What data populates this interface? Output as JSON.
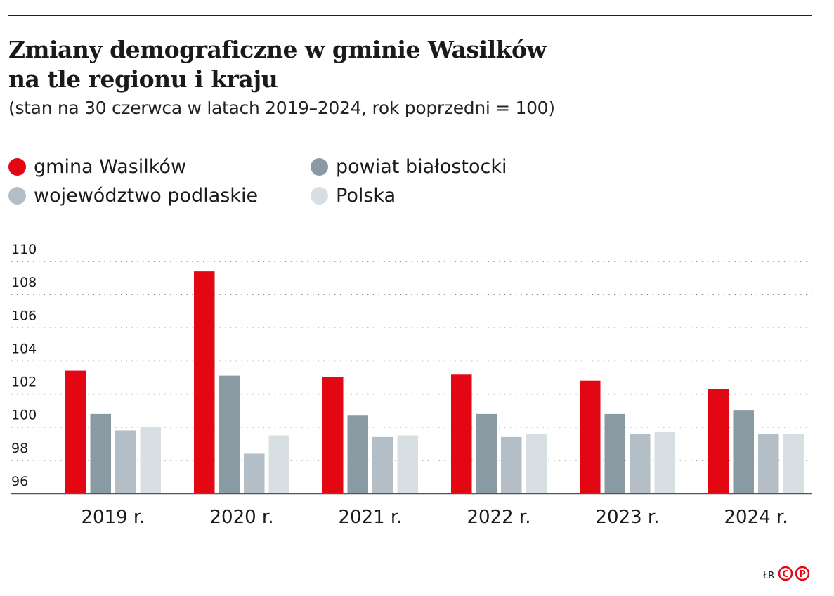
{
  "title_line1": "Zmiany demograficzne w gminie Wasilków",
  "title_line2": "na tle regionu i kraju",
  "subtitle": "(stan na 30 czerwca w latach 2019–2024, rok poprzedni = 100)",
  "credit": "ŁR",
  "logo": "CP",
  "colors": {
    "accent": "#e30613"
  },
  "chart_data": {
    "type": "bar",
    "categories": [
      "2019 r.",
      "2020 r.",
      "2021 r.",
      "2022 r.",
      "2023 r.",
      "2024 r."
    ],
    "series": [
      {
        "name": "gmina Wasilków",
        "color": "#e30613",
        "values": [
          103.4,
          109.4,
          103.0,
          103.2,
          102.8,
          102.3
        ]
      },
      {
        "name": "powiat białostocki",
        "color": "#8a9aa2",
        "values": [
          100.8,
          103.1,
          100.7,
          100.8,
          100.8,
          101.0
        ]
      },
      {
        "name": "województwo podlaskie",
        "color": "#b3bec6",
        "values": [
          99.8,
          98.4,
          99.4,
          99.4,
          99.6,
          99.6
        ]
      },
      {
        "name": "Polska",
        "color": "#d7dfe2",
        "values": [
          100.0,
          99.5,
          99.5,
          99.6,
          99.7,
          99.6
        ]
      }
    ],
    "yticks": [
      96,
      98,
      100,
      102,
      104,
      106,
      108,
      110
    ],
    "ylim": [
      96,
      110
    ],
    "grid": true,
    "legend_placement": "top-left"
  }
}
